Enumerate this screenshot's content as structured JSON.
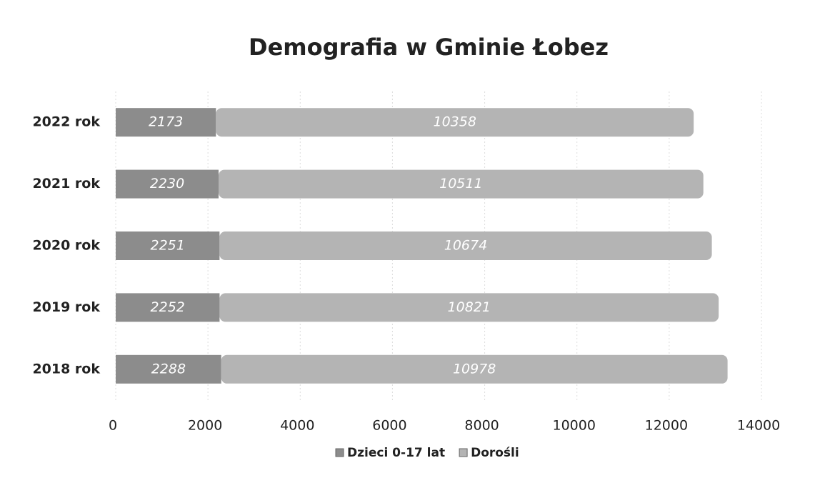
{
  "chart_data": {
    "type": "stacked-bar-horizontal",
    "title": "Demografia w Gminie Łobez",
    "categories": [
      "2022 rok",
      "2021 rok",
      "2020 rok",
      "2019 rok",
      "2018 rok"
    ],
    "series": [
      {
        "name": "Dzieci 0-17 lat",
        "color": "#8c8c8c",
        "values": [
          2173,
          2230,
          2251,
          2252,
          2288
        ]
      },
      {
        "name": "Dorośli",
        "color": "#b4b4b4",
        "values": [
          10358,
          10511,
          10674,
          10821,
          10978
        ]
      }
    ],
    "xlim": [
      0,
      14000
    ],
    "xticks": [
      0,
      2000,
      4000,
      6000,
      8000,
      10000,
      12000,
      14000
    ],
    "grid": true,
    "legend": "bottom"
  }
}
